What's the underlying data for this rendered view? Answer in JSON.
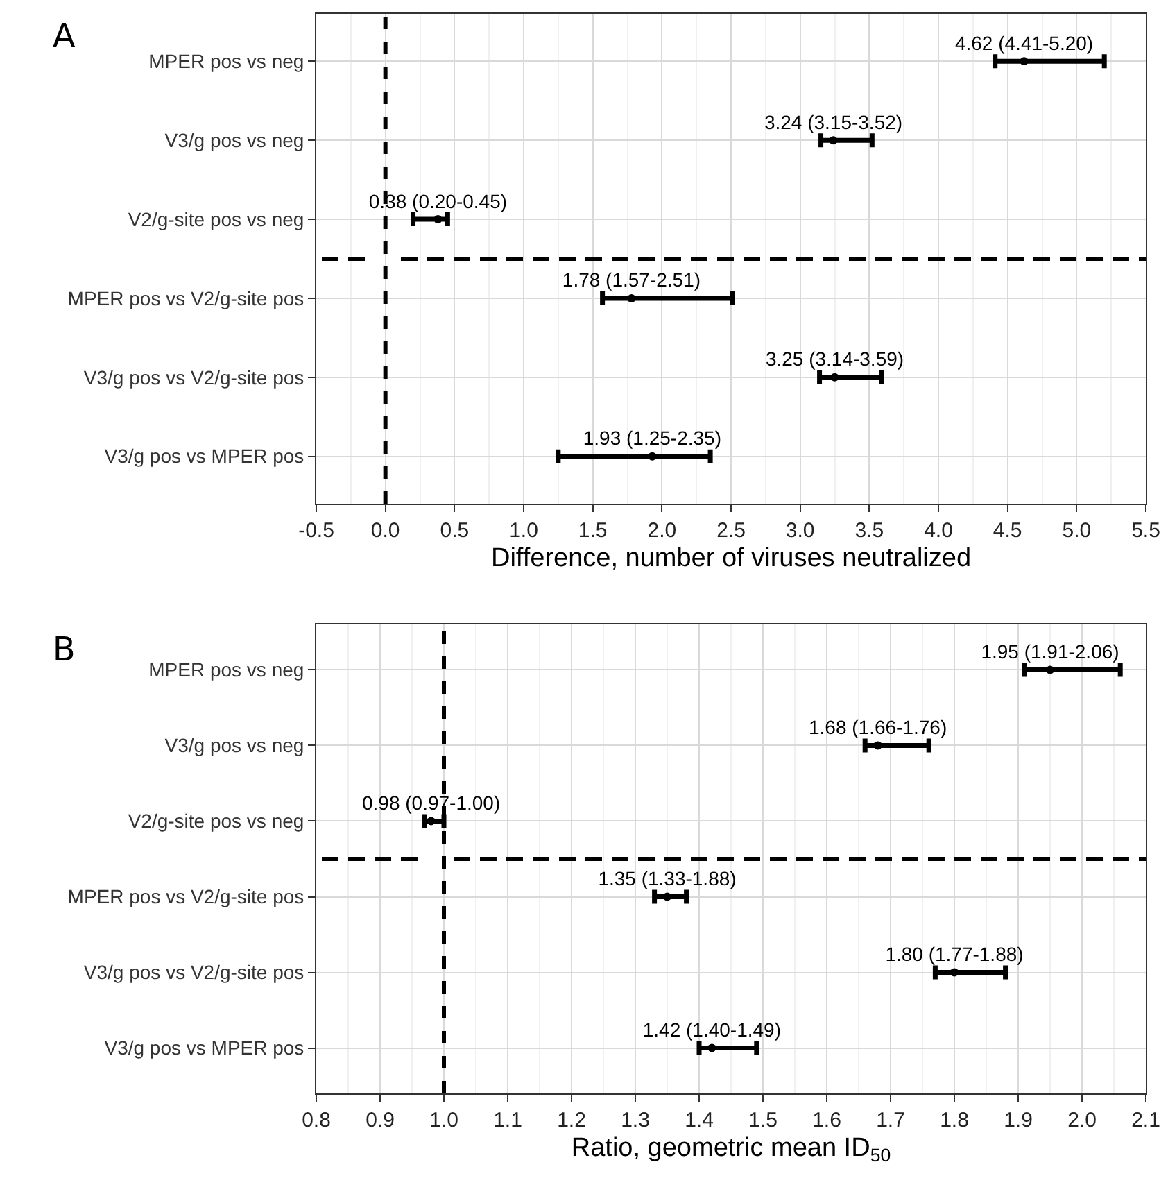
{
  "chart_data": [
    {
      "type": "scatter",
      "title": "A",
      "orientation": "horizontal",
      "xlabel": "Difference, number of viruses neutralized",
      "categories": [
        "MPER pos vs neg",
        "V3/g pos vs neg",
        "V2/g-site pos vs neg",
        "MPER pos vs V2/g-site pos",
        "V3/g pos vs V2/g-site pos",
        "V3/g pos vs MPER pos"
      ],
      "series": [
        {
          "color": "#000000",
          "values": [
            4.62,
            3.24,
            0.38,
            1.78,
            3.25,
            1.93
          ],
          "errors": [
            [
              4.41,
              5.2
            ],
            [
              3.15,
              3.52
            ],
            [
              0.2,
              0.45
            ],
            [
              1.57,
              2.51
            ],
            [
              3.14,
              3.59
            ],
            [
              1.25,
              2.35
            ]
          ],
          "value_labels": [
            "4.62 (4.41-5.20)",
            "3.24 (3.15-3.52)",
            "0.38 (0.20-0.45)",
            "1.78 (1.57-2.51)",
            "3.25 (3.14-3.59)",
            "1.93 (1.25-2.35)"
          ]
        }
      ],
      "xlim": [
        -0.5,
        5.5
      ],
      "xticks": [
        {
          "value": -0.5,
          "label": "-0.5"
        },
        {
          "value": 0,
          "label": "0.0"
        },
        0.5,
        {
          "value": 1,
          "label": "1.0"
        },
        1.5,
        {
          "value": 2,
          "label": "2.0"
        },
        2.5,
        {
          "value": 3,
          "label": "3.0"
        },
        3.5,
        {
          "value": 4,
          "label": "4.0"
        },
        4.5,
        {
          "value": 5,
          "label": "5.0"
        },
        5.5
      ],
      "ref_lines": [
        {
          "axis": "x",
          "value": 0,
          "line_style": "dashed",
          "color": "#000000"
        }
      ],
      "grid": true,
      "marker": "circle"
    },
    {
      "type": "scatter",
      "title": "B",
      "orientation": "horizontal",
      "xlabel": "Ratio, geometric mean ID$_{50}$",
      "categories": [
        "MPER pos vs neg",
        "V3/g pos vs neg",
        "V2/g-site pos vs neg",
        "MPER pos vs V2/g-site pos",
        "V3/g pos vs V2/g-site pos",
        "V3/g pos vs MPER pos"
      ],
      "series": [
        {
          "color": "#000000",
          "values": [
            1.95,
            1.68,
            0.98,
            1.35,
            1.8,
            1.42
          ],
          "errors": [
            [
              1.91,
              2.06
            ],
            [
              1.66,
              1.76
            ],
            [
              0.97,
              1.0
            ],
            [
              1.33,
              1.38
            ],
            [
              1.77,
              1.88
            ],
            [
              1.4,
              1.49
            ]
          ],
          "value_labels": [
            "1.95 (1.91-2.06)",
            "1.68 (1.66-1.76)",
            "0.98 (0.97-1.00)",
            "1.35 (1.33-1.88)",
            "1.80 (1.77-1.88)",
            "1.42 (1.40-1.49)"
          ]
        }
      ],
      "xlim": [
        0.8,
        2.1
      ],
      "xticks": [
        0.8,
        0.9,
        {
          "value": 1,
          "label": "1.0"
        },
        1.1,
        1.2,
        1.3,
        1.4,
        1.5,
        1.6,
        1.7,
        1.8,
        1.9,
        {
          "value": 2,
          "label": "2.0"
        },
        2.1
      ],
      "ref_lines": [
        {
          "axis": "x",
          "value": 1,
          "line_style": "dashed",
          "color": "#000000"
        }
      ],
      "grid": true,
      "marker": "circle"
    }
  ]
}
